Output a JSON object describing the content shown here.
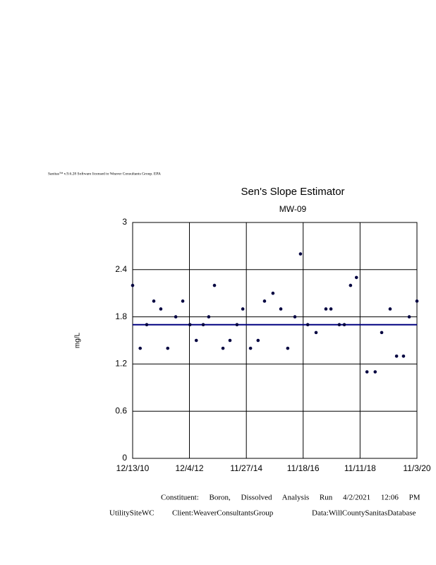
{
  "chart_data": {
    "type": "scatter",
    "header": "Sanitas™ v.9.6.28 Software licensed to Weaver Consultants Group. EPA",
    "title": "Sen's Slope Estimator",
    "subtitle": "MW-09",
    "y_label": "mg/L",
    "footer": "Constituent: Boron, Dissolved Analysis Run 4/2/2021 12:06 PM",
    "site": "UtilitySiteWC",
    "client": "Client:WeaverConsultantsGroup",
    "database": "Data:WillCountySanitasDatabase",
    "xlim": [
      "12/13/10",
      "11/3/20"
    ],
    "xticks": [
      "12/13/10",
      "12/4/12",
      "11/27/14",
      "11/18/16",
      "11/11/18",
      "11/3/20"
    ],
    "ylim": [
      0,
      3
    ],
    "yticks": [
      0,
      0.6,
      1.2,
      1.8,
      2.4,
      3
    ],
    "grid": true,
    "series": [
      {
        "color": "#000040",
        "x": [
          "12/13/10",
          "3/19/11",
          "6/10/11",
          "9/8/11",
          "12/6/11",
          "3/3/12",
          "6/13/12",
          "9/10/12",
          "12/10/12",
          "3/1/13",
          "5/28/13",
          "8/6/13",
          "10/18/13",
          "2/3/14",
          "5/3/14",
          "7/31/14",
          "10/13/14",
          "1/19/15",
          "4/25/15",
          "7/16/15",
          "10/31/15",
          "2/8/16",
          "5/6/16",
          "8/5/16",
          "10/15/16",
          "1/15/17",
          "5/1/17",
          "9/3/17",
          "11/6/17",
          "2/20/18",
          "4/25/18",
          "7/13/18",
          "9/26/18",
          "2/7/19",
          "5/22/19",
          "8/13/19",
          "11/28/19",
          "2/18/20",
          "5/16/20",
          "7/28/20",
          "11/3/20"
        ],
        "values": [
          2.2,
          1.4,
          1.7,
          2.0,
          1.9,
          1.4,
          1.8,
          2.0,
          1.7,
          1.5,
          1.7,
          1.8,
          2.2,
          1.4,
          1.5,
          1.7,
          1.9,
          1.4,
          1.5,
          2.0,
          2.1,
          1.9,
          1.4,
          1.8,
          2.6,
          1.7,
          1.6,
          1.9,
          1.9,
          1.7,
          1.7,
          2.2,
          2.3,
          1.1,
          1.1,
          1.6,
          1.9,
          1.3,
          1.3,
          1.8,
          2.0
        ]
      }
    ],
    "trend": {
      "color": "#000080",
      "x": [
        "12/13/10",
        "11/3/20"
      ],
      "values": [
        1.7,
        1.7
      ]
    }
  }
}
